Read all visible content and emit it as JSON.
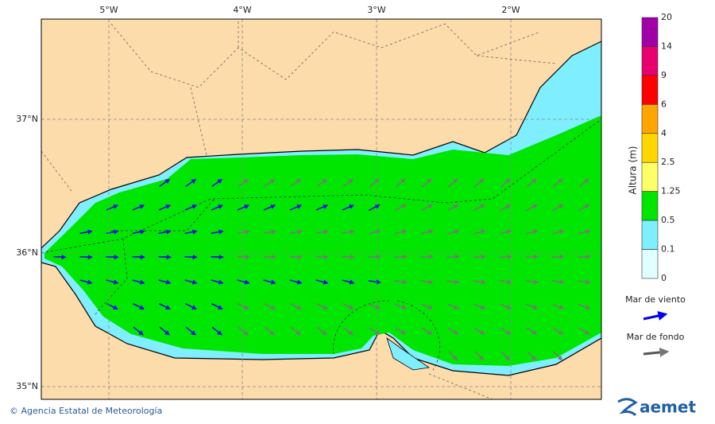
{
  "map": {
    "lon_ticks": [
      "5°W",
      "4°W",
      "3°W",
      "2°W"
    ],
    "lat_ticks": [
      "37°N",
      "36°N",
      "35°N"
    ],
    "colorbar": {
      "title": "Altura (m)",
      "levels": [
        "20",
        "14",
        "9",
        "6",
        "4",
        "2.5",
        "1.25",
        "0.5",
        "0.1",
        "0"
      ]
    },
    "legend": [
      "Mar de viento",
      "Mar de fondo"
    ]
  },
  "footer": {
    "credit": "© Agencia Estatal de Meteorología",
    "logo": "aemet"
  }
}
